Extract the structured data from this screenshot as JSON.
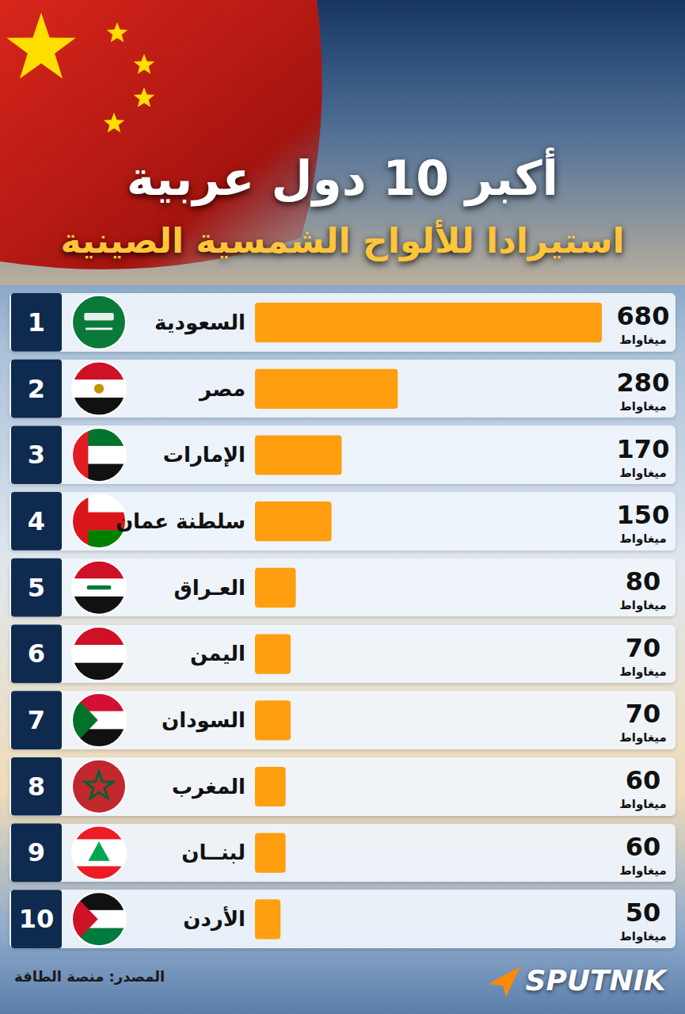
{
  "chart_data": {
    "type": "bar",
    "orientation": "horizontal",
    "title": "أكبر 10 دول عربية",
    "subtitle": "استيرادا للألواح الشمسية الصينية",
    "categories": [
      "السعودية",
      "مصر",
      "الإمارات",
      "سلطنة عمان",
      "العـراق",
      "اليمن",
      "السودان",
      "المغرب",
      "لبنــان",
      "الأردن"
    ],
    "values": [
      680,
      280,
      170,
      150,
      80,
      70,
      70,
      60,
      60,
      50
    ],
    "ranks": [
      1,
      2,
      3,
      4,
      5,
      6,
      7,
      8,
      9,
      10
    ],
    "unit_label": "ميغاواط",
    "color": "#ff9f0f",
    "xlim": [
      0,
      680
    ],
    "tick_labels": false,
    "data_labels": true,
    "grid": false,
    "source": "المصدر: منصة الطاقة",
    "brand": "SPUTNIK"
  }
}
